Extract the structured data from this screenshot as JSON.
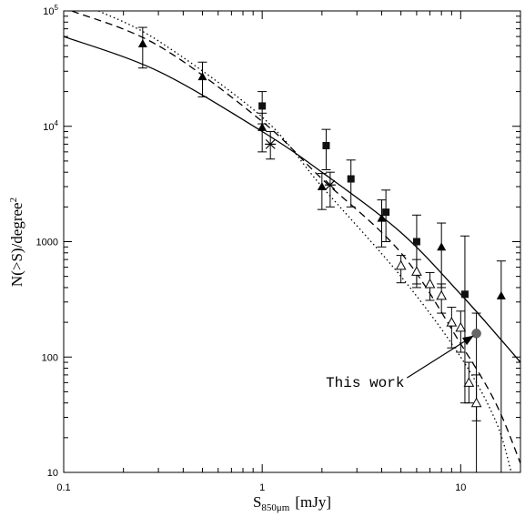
{
  "chart_data": {
    "type": "scatter",
    "title": "",
    "xlabel": "S",
    "xlabel_sub": "850μm",
    "xlabel_unit": "[mJy]",
    "ylabel": "N(>S)/degree",
    "ylabel_sup": "2",
    "xscale": "log",
    "yscale": "log",
    "xlim": [
      0.1,
      20
    ],
    "ylim": [
      10,
      100000
    ],
    "x_ticks": [
      {
        "value": 0.1,
        "label": "0.1"
      },
      {
        "value": 1,
        "label": "1"
      },
      {
        "value": 10,
        "label": "10"
      }
    ],
    "y_ticks": [
      {
        "value": 10,
        "label": "10"
      },
      {
        "value": 100,
        "label": "100"
      },
      {
        "value": 1000,
        "label": "1000"
      },
      {
        "value": 10000,
        "label": "10",
        "sup": "4"
      },
      {
        "value": 100000,
        "label": "10",
        "sup": "5"
      }
    ],
    "grid": false,
    "legend": "none",
    "series": [
      {
        "marker": "filled-triangle",
        "points": [
          {
            "x": 0.25,
            "y": 52000,
            "ylo": 32000,
            "yhi": 72000
          },
          {
            "x": 0.5,
            "y": 27000,
            "ylo": 18000,
            "yhi": 36000
          },
          {
            "x": 1.0,
            "y": 9800,
            "ylo": 6000,
            "yhi": 13000
          },
          {
            "x": 2.0,
            "y": 3000,
            "ylo": 1900,
            "yhi": 3900
          },
          {
            "x": 4.0,
            "y": 1600,
            "ylo": 900,
            "yhi": 2300
          },
          {
            "x": 8.0,
            "y": 900,
            "ylo": 400,
            "yhi": 1450
          },
          {
            "x": 16.0,
            "y": 340,
            "ylo": 10,
            "yhi": 680
          }
        ]
      },
      {
        "marker": "filled-square",
        "points": [
          {
            "x": 1.0,
            "y": 15000,
            "ylo": 10500,
            "yhi": 20000
          },
          {
            "x": 2.1,
            "y": 6800,
            "ylo": 4200,
            "yhi": 9400
          },
          {
            "x": 2.8,
            "y": 3500,
            "ylo": 2000,
            "yhi": 5100
          },
          {
            "x": 4.2,
            "y": 1800,
            "ylo": 1000,
            "yhi": 2800
          },
          {
            "x": 6.0,
            "y": 1000,
            "ylo": 430,
            "yhi": 1700
          },
          {
            "x": 10.5,
            "y": 350,
            "ylo": 40,
            "yhi": 1120
          }
        ]
      },
      {
        "marker": "open-triangle",
        "points": [
          {
            "x": 5.0,
            "y": 620,
            "ylo": 440,
            "yhi": 760
          },
          {
            "x": 6.0,
            "y": 550,
            "ylo": 400,
            "yhi": 700
          },
          {
            "x": 7.0,
            "y": 430,
            "ylo": 310,
            "yhi": 540
          },
          {
            "x": 8.0,
            "y": 340,
            "ylo": 240,
            "yhi": 430
          },
          {
            "x": 9.0,
            "y": 200,
            "ylo": 120,
            "yhi": 270
          },
          {
            "x": 10.0,
            "y": 180,
            "ylo": 110,
            "yhi": 250
          },
          {
            "x": 11.0,
            "y": 60,
            "ylo": 40,
            "yhi": 90
          },
          {
            "x": 12.0,
            "y": 40,
            "ylo": 28,
            "yhi": 70
          }
        ]
      },
      {
        "marker": "star",
        "points": [
          {
            "x": 1.1,
            "y": 7000,
            "ylo": 5200,
            "yhi": 9000
          },
          {
            "x": 2.2,
            "y": 3100,
            "ylo": 2000,
            "yhi": 4000
          }
        ]
      },
      {
        "marker": "filled-circle",
        "points": [
          {
            "x": 12.0,
            "y": 160,
            "ylo": 10,
            "yhi": 240
          }
        ]
      }
    ],
    "model_curves": [
      {
        "style": "solid",
        "points": [
          [
            0.1,
            60000
          ],
          [
            0.3,
            30000
          ],
          [
            1,
            9000
          ],
          [
            2,
            4000
          ],
          [
            5,
            1200
          ],
          [
            10,
            350
          ],
          [
            15,
            160
          ],
          [
            20,
            90
          ]
        ]
      },
      {
        "style": "dashed",
        "points": [
          [
            0.11,
            100000
          ],
          [
            0.3,
            50000
          ],
          [
            1,
            11000
          ],
          [
            2,
            3500
          ],
          [
            5,
            800
          ],
          [
            10,
            130
          ],
          [
            15,
            40
          ],
          [
            20,
            12
          ]
        ]
      },
      {
        "style": "dotted",
        "points": [
          [
            0.15,
            100000
          ],
          [
            0.3,
            55000
          ],
          [
            1,
            12000
          ],
          [
            2,
            3000
          ],
          [
            5,
            500
          ],
          [
            10,
            100
          ],
          [
            15,
            28
          ],
          [
            18,
            10
          ]
        ]
      }
    ],
    "annotations": [
      {
        "text": "This work",
        "x": 3.3,
        "y": 55,
        "arrow_to": {
          "x": 12.0,
          "y": 160
        }
      }
    ]
  }
}
